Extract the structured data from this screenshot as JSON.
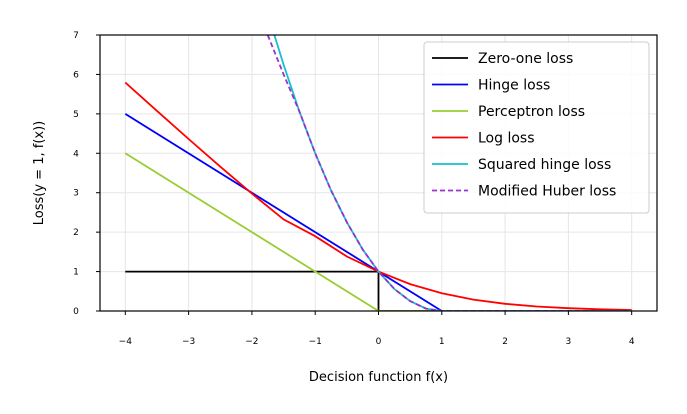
{
  "chart_data": {
    "type": "line",
    "xlabel": "Decision function f(x)",
    "ylabel": "Loss(y = 1, f(x))",
    "xlim": [
      -4.4,
      4.4
    ],
    "ylim": [
      0,
      7
    ],
    "xticks": [
      -4,
      -3,
      -2,
      -1,
      0,
      1,
      2,
      3,
      4
    ],
    "yticks": [
      0,
      1,
      2,
      3,
      4,
      5,
      6,
      7
    ],
    "grid": true,
    "legend_position": "top-right",
    "series": [
      {
        "name": "Zero-one loss",
        "color": "#000000",
        "dash": "solid",
        "x": [
          -4,
          0,
          0,
          4
        ],
        "y": [
          1,
          1,
          0,
          0
        ]
      },
      {
        "name": "Hinge loss",
        "color": "#0000ff",
        "dash": "solid",
        "x": [
          -4,
          1,
          4
        ],
        "y": [
          5,
          0,
          0
        ]
      },
      {
        "name": "Perceptron loss",
        "color": "#9acd32",
        "dash": "solid",
        "x": [
          -4,
          0,
          4
        ],
        "y": [
          4,
          0,
          0
        ]
      },
      {
        "name": "Log loss",
        "color": "#ff0000",
        "dash": "solid",
        "x": [
          -4,
          -3.5,
          -3,
          -2.5,
          -2,
          -1.5,
          -1,
          -0.5,
          0,
          0.5,
          1,
          1.5,
          2,
          2.5,
          3,
          3.5,
          4
        ],
        "y": [
          5.795,
          5.074,
          4.362,
          3.66,
          2.977,
          2.323,
          1.896,
          1.382,
          1.0,
          0.683,
          0.452,
          0.29,
          0.183,
          0.114,
          0.07,
          0.043,
          0.026
        ]
      },
      {
        "name": "Squared hinge loss",
        "color": "#17becf",
        "dash": "solid",
        "x": [
          -1.65,
          -1.5,
          -1.25,
          -1,
          -0.75,
          -0.5,
          -0.25,
          0,
          0.25,
          0.5,
          0.75,
          1,
          2,
          3,
          4
        ],
        "y": [
          7.02,
          6.25,
          5.06,
          4.0,
          3.06,
          2.25,
          1.56,
          1.0,
          0.56,
          0.25,
          0.06,
          0,
          0,
          0,
          0
        ]
      },
      {
        "name": "Modified Huber loss",
        "color": "#9932cc",
        "dash": "dashed",
        "x": [
          -1.75,
          -1.5,
          -1.25,
          -1,
          -0.75,
          -0.5,
          -0.25,
          0,
          0.25,
          0.5,
          0.75,
          1,
          2,
          3,
          4
        ],
        "y": [
          7.0,
          6.0,
          5.06,
          4.0,
          3.06,
          2.25,
          1.56,
          1.0,
          0.56,
          0.25,
          0.06,
          0,
          0,
          0,
          0
        ]
      }
    ]
  }
}
